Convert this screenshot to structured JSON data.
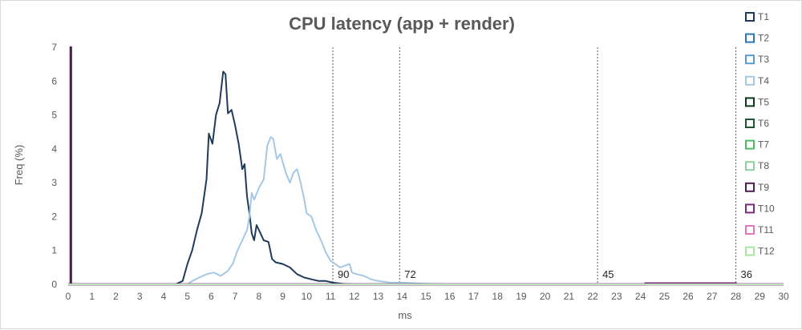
{
  "chart_data": {
    "type": "line",
    "title": "CPU latency (app + render)",
    "xlabel": "ms",
    "ylabel": "Freq (%)",
    "xlim": [
      0,
      30
    ],
    "ylim": [
      0,
      7
    ],
    "x_ticks": [
      0,
      1,
      2,
      3,
      4,
      5,
      6,
      7,
      8,
      9,
      10,
      11,
      12,
      13,
      14,
      15,
      16,
      17,
      18,
      19,
      20,
      21,
      22,
      23,
      24,
      25,
      26,
      27,
      28,
      29,
      30
    ],
    "y_ticks": [
      0,
      1,
      2,
      3,
      4,
      5,
      6,
      7
    ],
    "grid": false,
    "legend_position": "right",
    "series": [
      {
        "name": "T1",
        "color": "#1f3b5c",
        "points": [
          [
            0,
            0
          ],
          [
            4.5,
            0
          ],
          [
            4.8,
            0.1
          ],
          [
            5.0,
            0.6
          ],
          [
            5.2,
            1.0
          ],
          [
            5.4,
            1.6
          ],
          [
            5.6,
            2.1
          ],
          [
            5.8,
            3.1
          ],
          [
            5.9,
            4.45
          ],
          [
            6.05,
            4.15
          ],
          [
            6.2,
            5.0
          ],
          [
            6.35,
            5.35
          ],
          [
            6.5,
            6.28
          ],
          [
            6.6,
            6.2
          ],
          [
            6.7,
            5.05
          ],
          [
            6.85,
            5.15
          ],
          [
            7.0,
            4.7
          ],
          [
            7.15,
            4.15
          ],
          [
            7.3,
            3.4
          ],
          [
            7.4,
            3.55
          ],
          [
            7.5,
            2.6
          ],
          [
            7.6,
            2.1
          ],
          [
            7.7,
            1.5
          ],
          [
            7.8,
            1.3
          ],
          [
            7.9,
            1.75
          ],
          [
            8.0,
            1.6
          ],
          [
            8.2,
            1.3
          ],
          [
            8.4,
            1.25
          ],
          [
            8.55,
            0.75
          ],
          [
            8.7,
            0.65
          ],
          [
            9.0,
            0.6
          ],
          [
            9.3,
            0.5
          ],
          [
            9.6,
            0.3
          ],
          [
            9.9,
            0.2
          ],
          [
            10.2,
            0.15
          ],
          [
            10.5,
            0.1
          ],
          [
            10.8,
            0.1
          ],
          [
            11.1,
            0.05
          ],
          [
            11.5,
            0.02
          ],
          [
            12,
            0
          ],
          [
            30,
            0
          ]
        ]
      },
      {
        "name": "T2",
        "color": "#2e75b6",
        "points": [
          [
            0,
            0
          ],
          [
            30,
            0
          ]
        ]
      },
      {
        "name": "T3",
        "color": "#5b9bd5",
        "points": [
          [
            0,
            0
          ],
          [
            30,
            0
          ]
        ]
      },
      {
        "name": "T4",
        "color": "#a5c8e4",
        "points": [
          [
            0,
            0
          ],
          [
            5.0,
            0
          ],
          [
            5.2,
            0.1
          ],
          [
            5.5,
            0.2
          ],
          [
            5.8,
            0.3
          ],
          [
            6.1,
            0.35
          ],
          [
            6.4,
            0.25
          ],
          [
            6.7,
            0.4
          ],
          [
            6.9,
            0.6
          ],
          [
            7.1,
            1.0
          ],
          [
            7.3,
            1.3
          ],
          [
            7.5,
            1.6
          ],
          [
            7.6,
            2.0
          ],
          [
            7.7,
            2.7
          ],
          [
            7.8,
            2.5
          ],
          [
            8.0,
            2.85
          ],
          [
            8.2,
            3.1
          ],
          [
            8.35,
            4.1
          ],
          [
            8.5,
            4.35
          ],
          [
            8.6,
            4.3
          ],
          [
            8.75,
            3.7
          ],
          [
            8.9,
            3.85
          ],
          [
            9.0,
            3.6
          ],
          [
            9.15,
            3.25
          ],
          [
            9.3,
            3.0
          ],
          [
            9.45,
            3.3
          ],
          [
            9.6,
            3.4
          ],
          [
            9.75,
            3.0
          ],
          [
            9.9,
            2.5
          ],
          [
            10.0,
            2.1
          ],
          [
            10.2,
            2.0
          ],
          [
            10.4,
            1.6
          ],
          [
            10.6,
            1.3
          ],
          [
            10.8,
            0.95
          ],
          [
            11.0,
            0.7
          ],
          [
            11.2,
            0.6
          ],
          [
            11.4,
            0.5
          ],
          [
            11.6,
            0.55
          ],
          [
            11.8,
            0.6
          ],
          [
            11.9,
            0.35
          ],
          [
            12.1,
            0.3
          ],
          [
            12.4,
            0.25
          ],
          [
            12.7,
            0.15
          ],
          [
            13.0,
            0.1
          ],
          [
            13.5,
            0.05
          ],
          [
            14.0,
            0.05
          ],
          [
            15,
            0.02
          ],
          [
            16,
            0
          ],
          [
            30,
            0
          ]
        ]
      },
      {
        "name": "T5",
        "color": "#0d3b1a",
        "points": [
          [
            0,
            0
          ],
          [
            30,
            0
          ]
        ]
      },
      {
        "name": "T6",
        "color": "#1e5631",
        "points": [
          [
            0,
            0
          ],
          [
            30,
            0
          ]
        ]
      },
      {
        "name": "T7",
        "color": "#4cbb6a",
        "points": [
          [
            0,
            0
          ],
          [
            30,
            0
          ]
        ]
      },
      {
        "name": "T8",
        "color": "#8fd19e",
        "points": [
          [
            0,
            0
          ],
          [
            30,
            0
          ]
        ]
      },
      {
        "name": "T9",
        "color": "#4b1f4f",
        "points": [
          [
            0,
            0
          ],
          [
            0.1,
            0
          ],
          [
            0.1,
            7
          ],
          [
            0.12,
            7
          ],
          [
            0.12,
            0
          ],
          [
            30,
            0
          ]
        ]
      },
      {
        "name": "T10",
        "color": "#7a2e7a",
        "points": [
          [
            0,
            0
          ],
          [
            24.2,
            0
          ],
          [
            24.2,
            0.03
          ],
          [
            28,
            0.03
          ],
          [
            28,
            0
          ],
          [
            30,
            0
          ]
        ]
      },
      {
        "name": "T11",
        "color": "#e377c2",
        "points": [
          [
            0,
            0
          ],
          [
            30,
            0
          ]
        ]
      },
      {
        "name": "T12",
        "color": "#a8e6a1",
        "points": [
          [
            0,
            0
          ],
          [
            30,
            0
          ]
        ]
      }
    ],
    "vertical_markers": [
      {
        "x": 11.1,
        "label": "90"
      },
      {
        "x": 13.9,
        "label": "72"
      },
      {
        "x": 22.2,
        "label": "45"
      },
      {
        "x": 28.0,
        "label": "36"
      }
    ]
  }
}
